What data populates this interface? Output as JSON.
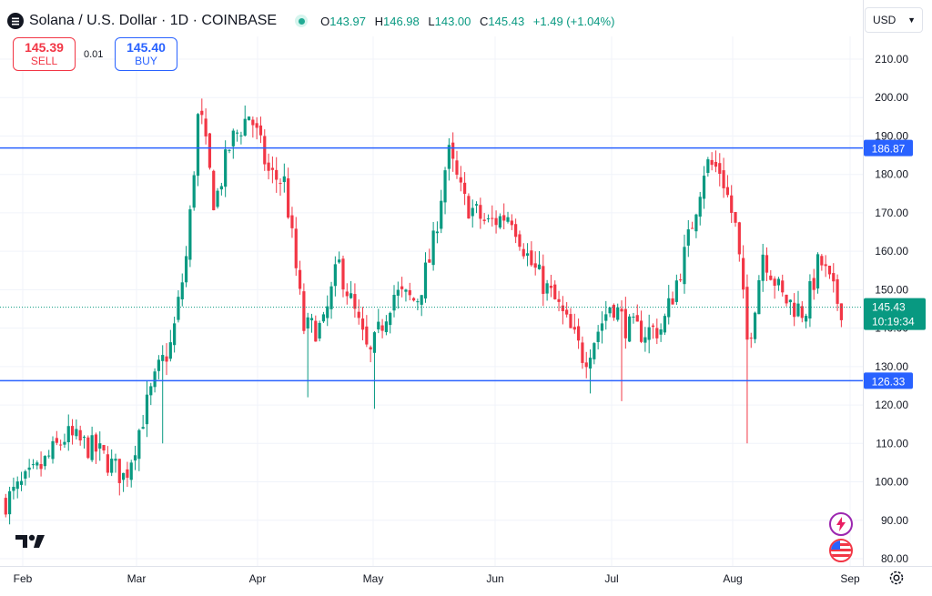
{
  "header": {
    "title": "Solana / U.S. Dollar · 1D · COINBASE",
    "ohlc": [
      {
        "k": "O",
        "v": "143.97"
      },
      {
        "k": "H",
        "v": "146.98"
      },
      {
        "k": "L",
        "v": "143.00"
      },
      {
        "k": "C",
        "v": "145.43"
      },
      {
        "k": "",
        "v": "+1.49 (+1.04%)"
      }
    ]
  },
  "trade": {
    "sell_price": "145.39",
    "sell_label": "SELL",
    "spread": "0.01",
    "buy_price": "145.40",
    "buy_label": "BUY"
  },
  "currency": "USD",
  "colors": {
    "up": "#089981",
    "down": "#f23645",
    "line": "#2962ff",
    "grid": "#f0f3fa",
    "axis_text": "#131722"
  },
  "chart_data": {
    "type": "candlestick",
    "title": "Solana / U.S. Dollar · 1D · COINBASE",
    "ylim": [
      78,
      215
    ],
    "y_ticks": [
      80,
      90,
      100,
      110,
      120,
      130,
      140,
      150,
      160,
      170,
      180,
      190,
      200,
      210
    ],
    "x_ticks": [
      "Feb",
      "Mar",
      "Apr",
      "May",
      "Jun",
      "Jul",
      "Aug",
      "Sep"
    ],
    "horizontal_lines": [
      186.87,
      126.33
    ],
    "last_price": 145.43,
    "countdown": "10:19:34",
    "grid": true,
    "waypoints": [
      {
        "date": "Jan 28",
        "v": 95
      },
      {
        "date": "Feb 5",
        "v": 103
      },
      {
        "date": "Feb 12",
        "v": 112
      },
      {
        "date": "Feb 20",
        "v": 108
      },
      {
        "date": "Feb 27",
        "v": 101
      },
      {
        "date": "Mar 3",
        "v": 118
      },
      {
        "date": "Mar 7",
        "v": 130
      },
      {
        "date": "Mar 10",
        "v": 136
      },
      {
        "date": "Mar 14",
        "v": 160
      },
      {
        "date": "Mar 17",
        "v": 198
      },
      {
        "date": "Mar 21",
        "v": 172
      },
      {
        "date": "Mar 25",
        "v": 188
      },
      {
        "date": "Mar 30",
        "v": 196
      },
      {
        "date": "Apr 4",
        "v": 180
      },
      {
        "date": "Apr 8",
        "v": 178
      },
      {
        "date": "Apr 13",
        "v": 140
      },
      {
        "date": "Apr 18",
        "v": 140
      },
      {
        "date": "Apr 22",
        "v": 157
      },
      {
        "date": "Apr 30",
        "v": 132
      },
      {
        "date": "May 6",
        "v": 149
      },
      {
        "date": "May 12",
        "v": 147
      },
      {
        "date": "May 16",
        "v": 160
      },
      {
        "date": "May 20",
        "v": 186
      },
      {
        "date": "May 24",
        "v": 173
      },
      {
        "date": "May 30",
        "v": 167
      },
      {
        "date": "Jun 5",
        "v": 170
      },
      {
        "date": "Jun 10",
        "v": 157
      },
      {
        "date": "Jun 17",
        "v": 146
      },
      {
        "date": "Jun 24",
        "v": 132
      },
      {
        "date": "Jul 1",
        "v": 147
      },
      {
        "date": "Jul 5",
        "v": 140
      },
      {
        "date": "Jul 9",
        "v": 139
      },
      {
        "date": "Jul 14",
        "v": 140
      },
      {
        "date": "Jul 20",
        "v": 160
      },
      {
        "date": "Jul 25",
        "v": 183
      },
      {
        "date": "Jul 29",
        "v": 181
      },
      {
        "date": "Aug 2",
        "v": 165
      },
      {
        "date": "Aug 5",
        "v": 135
      },
      {
        "date": "Aug 9",
        "v": 160
      },
      {
        "date": "Aug 14",
        "v": 148
      },
      {
        "date": "Aug 20",
        "v": 144
      },
      {
        "date": "Aug 24",
        "v": 158
      },
      {
        "date": "Aug 28",
        "v": 148
      },
      {
        "date": "Aug 30",
        "v": 145
      }
    ]
  }
}
